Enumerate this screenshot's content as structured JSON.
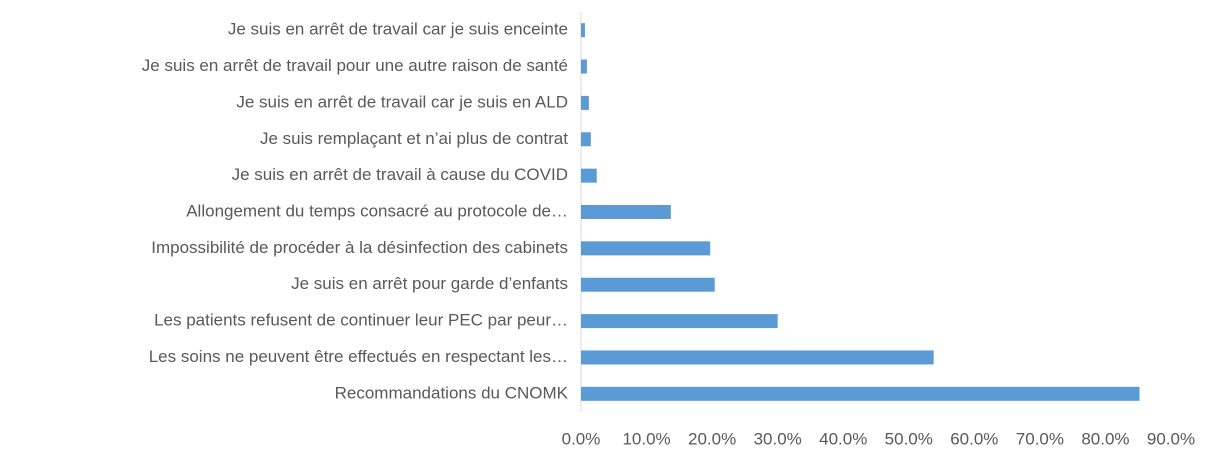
{
  "chart_data": {
    "type": "bar",
    "orientation": "horizontal",
    "categories": [
      "Je suis en arrêt de travail car je suis enceinte",
      "Je suis en arrêt de travail pour une autre raison de santé",
      "Je suis en arrêt de travail car je suis en ALD",
      "Je suis remplaçant et n’ai plus de contrat",
      "Je suis en arrêt de travail à cause du COVID",
      "Allongement du temps consacré au protocole de…",
      "Impossibilité de procéder à la désinfection des cabinets",
      "Je suis en arrêt pour garde d’enfants",
      "Les patients refusent de continuer leur PEC par peur…",
      "Les soins ne peuvent être effectués en respectant les…",
      "Recommandations du CNOMK"
    ],
    "values": [
      0.6,
      0.9,
      1.2,
      1.5,
      2.4,
      13.7,
      19.7,
      20.4,
      30.0,
      53.8,
      85.2
    ],
    "color": "#5b9bd5",
    "xlim": [
      0,
      90
    ],
    "xticks": [
      {
        "value": 0,
        "label": "0.0%"
      },
      {
        "value": 10,
        "label": "10.0%"
      },
      {
        "value": 20,
        "label": "20.0%"
      },
      {
        "value": 30,
        "label": "30.0%"
      },
      {
        "value": 40,
        "label": "40.0%"
      },
      {
        "value": 50,
        "label": "50.0%"
      },
      {
        "value": 60,
        "label": "60.0%"
      },
      {
        "value": 70,
        "label": "70.0%"
      },
      {
        "value": 80,
        "label": "80.0%"
      },
      {
        "value": 90,
        "label": "90.0%"
      }
    ],
    "grid": false
  }
}
